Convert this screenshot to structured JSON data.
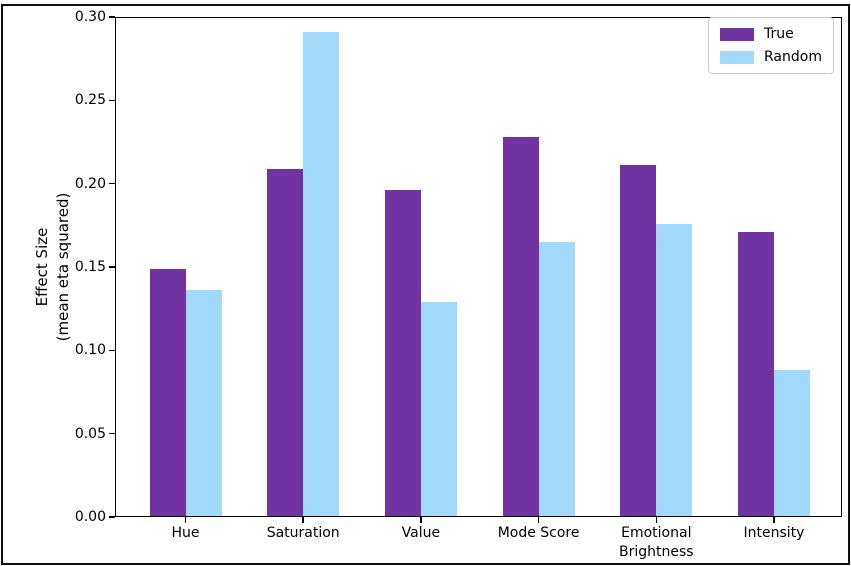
{
  "window": {
    "background": "#ffffff",
    "frame_color": "#111111"
  },
  "chart_data": {
    "type": "bar",
    "title": "",
    "xlabel": "",
    "ylabel": "Effect Size (mean eta squared)",
    "ylabel_lines": [
      "Effect Size",
      "(mean eta squared)"
    ],
    "categories": [
      "Hue",
      "Saturation",
      "Value",
      "Mode Score",
      "Emotional\nBrightness",
      "Intensity"
    ],
    "series": [
      {
        "name": "True",
        "color": "#7133a1",
        "values": [
          0.149,
          0.209,
          0.196,
          0.228,
          0.211,
          0.171
        ]
      },
      {
        "name": "Random",
        "color": "#a2d8fa",
        "values": [
          0.136,
          0.291,
          0.129,
          0.165,
          0.176,
          0.088
        ]
      }
    ],
    "ylim": [
      0.0,
      0.3
    ],
    "yticks": [
      0.0,
      0.05,
      0.1,
      0.15,
      0.2,
      0.25,
      0.3
    ],
    "ytick_labels": [
      "0.00",
      "0.05",
      "0.10",
      "0.15",
      "0.20",
      "0.25",
      "0.30"
    ],
    "legend": {
      "location": "upper right",
      "entries": [
        "True",
        "Random"
      ]
    },
    "grid": false,
    "axis_color": "#000000",
    "text_color": "#000000"
  }
}
